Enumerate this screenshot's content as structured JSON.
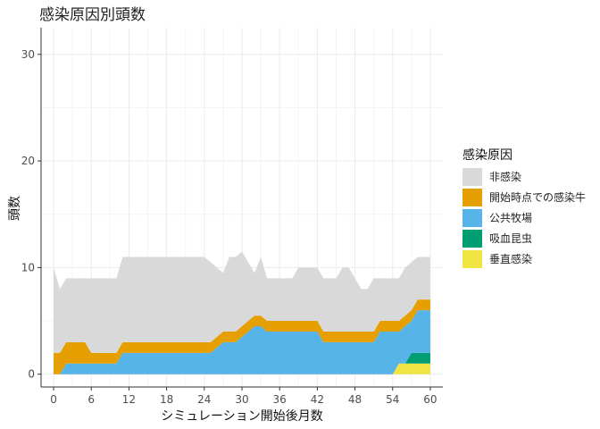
{
  "chart_data": {
    "type": "area",
    "stacked": true,
    "title": "感染原因別頭数",
    "xlabel": "シミュレーション開始後月数",
    "ylabel": "頭数",
    "xlim": [
      -2,
      62
    ],
    "ylim": [
      -1.2,
      32.5
    ],
    "x_ticks": [
      0,
      6,
      12,
      18,
      24,
      30,
      36,
      42,
      48,
      54,
      60
    ],
    "y_ticks": [
      0,
      10,
      20,
      30
    ],
    "grid": true,
    "legend": {
      "title": "感染原因",
      "placement": "right"
    },
    "x": [
      0,
      1,
      2,
      3,
      4,
      5,
      6,
      7,
      8,
      9,
      10,
      11,
      12,
      13,
      14,
      15,
      16,
      17,
      18,
      19,
      20,
      21,
      22,
      23,
      24,
      25,
      26,
      27,
      28,
      29,
      30,
      31,
      32,
      33,
      34,
      35,
      36,
      37,
      38,
      39,
      40,
      41,
      42,
      43,
      44,
      45,
      46,
      47,
      48,
      49,
      50,
      51,
      52,
      53,
      54,
      55,
      56,
      57,
      58,
      59,
      60
    ],
    "series": [
      {
        "name": "垂直感染",
        "color": "#f0e442",
        "values": [
          0,
          0,
          0,
          0,
          0,
          0,
          0,
          0,
          0,
          0,
          0,
          0,
          0,
          0,
          0,
          0,
          0,
          0,
          0,
          0,
          0,
          0,
          0,
          0,
          0,
          0,
          0,
          0,
          0,
          0,
          0,
          0,
          0,
          0,
          0,
          0,
          0,
          0,
          0,
          0,
          0,
          0,
          0,
          0,
          0,
          0,
          0,
          0,
          0,
          0,
          0,
          0,
          0,
          0,
          0,
          1,
          1,
          1,
          1,
          1,
          1
        ]
      },
      {
        "name": "吸血昆虫",
        "color": "#009e73",
        "values": [
          0,
          0,
          0,
          0,
          0,
          0,
          0,
          0,
          0,
          0,
          0,
          0,
          0,
          0,
          0,
          0,
          0,
          0,
          0,
          0,
          0,
          0,
          0,
          0,
          0,
          0,
          0,
          0,
          0,
          0,
          0,
          0,
          0,
          0,
          0,
          0,
          0,
          0,
          0,
          0,
          0,
          0,
          0,
          0,
          0,
          0,
          0,
          0,
          0,
          0,
          0,
          0,
          0,
          0,
          0,
          0,
          0,
          1,
          1,
          1,
          1
        ]
      },
      {
        "name": "公共牧場",
        "color": "#56b4e9",
        "values": [
          0,
          0,
          1,
          1,
          1,
          1,
          1,
          1,
          1,
          1,
          1,
          2,
          2,
          2,
          2,
          2,
          2,
          2,
          2,
          2,
          2,
          2,
          2,
          2,
          2,
          2,
          2.5,
          3,
          3,
          3,
          3.5,
          4,
          4.5,
          4.5,
          4,
          4,
          4,
          4,
          4,
          4,
          4,
          4,
          4,
          3,
          3,
          3,
          3,
          3,
          3,
          3,
          3,
          3,
          4,
          4,
          4,
          3,
          3.5,
          3,
          4,
          4,
          4
        ]
      },
      {
        "name": "開始時点での感染牛",
        "color": "#e69f00",
        "values": [
          2,
          2,
          2,
          2,
          2,
          2,
          1,
          1,
          1,
          1,
          1,
          1,
          1,
          1,
          1,
          1,
          1,
          1,
          1,
          1,
          1,
          1,
          1,
          1,
          1,
          1,
          1,
          1,
          1,
          1,
          1,
          1,
          1,
          1,
          1,
          1,
          1,
          1,
          1,
          1,
          1,
          1,
          1,
          1,
          1,
          1,
          1,
          1,
          1,
          1,
          1,
          1,
          1,
          1,
          1,
          1,
          1,
          1,
          1,
          1,
          1
        ]
      },
      {
        "name": "非感染",
        "color": "#d9d9d9",
        "values": [
          8,
          6,
          6,
          6,
          6,
          6,
          7,
          7,
          7,
          7,
          7,
          8,
          8,
          8,
          8,
          8,
          8,
          8,
          8,
          8,
          8,
          8,
          8,
          8,
          8,
          7.5,
          6.5,
          5.5,
          7,
          7,
          7,
          5.5,
          4,
          5.5,
          4,
          4,
          4,
          4,
          4,
          5,
          5,
          5,
          5,
          5,
          5,
          5,
          6,
          6,
          5,
          4,
          4,
          5,
          4,
          4,
          4,
          4,
          4.5,
          4.5,
          4,
          4,
          4
        ]
      }
    ]
  }
}
